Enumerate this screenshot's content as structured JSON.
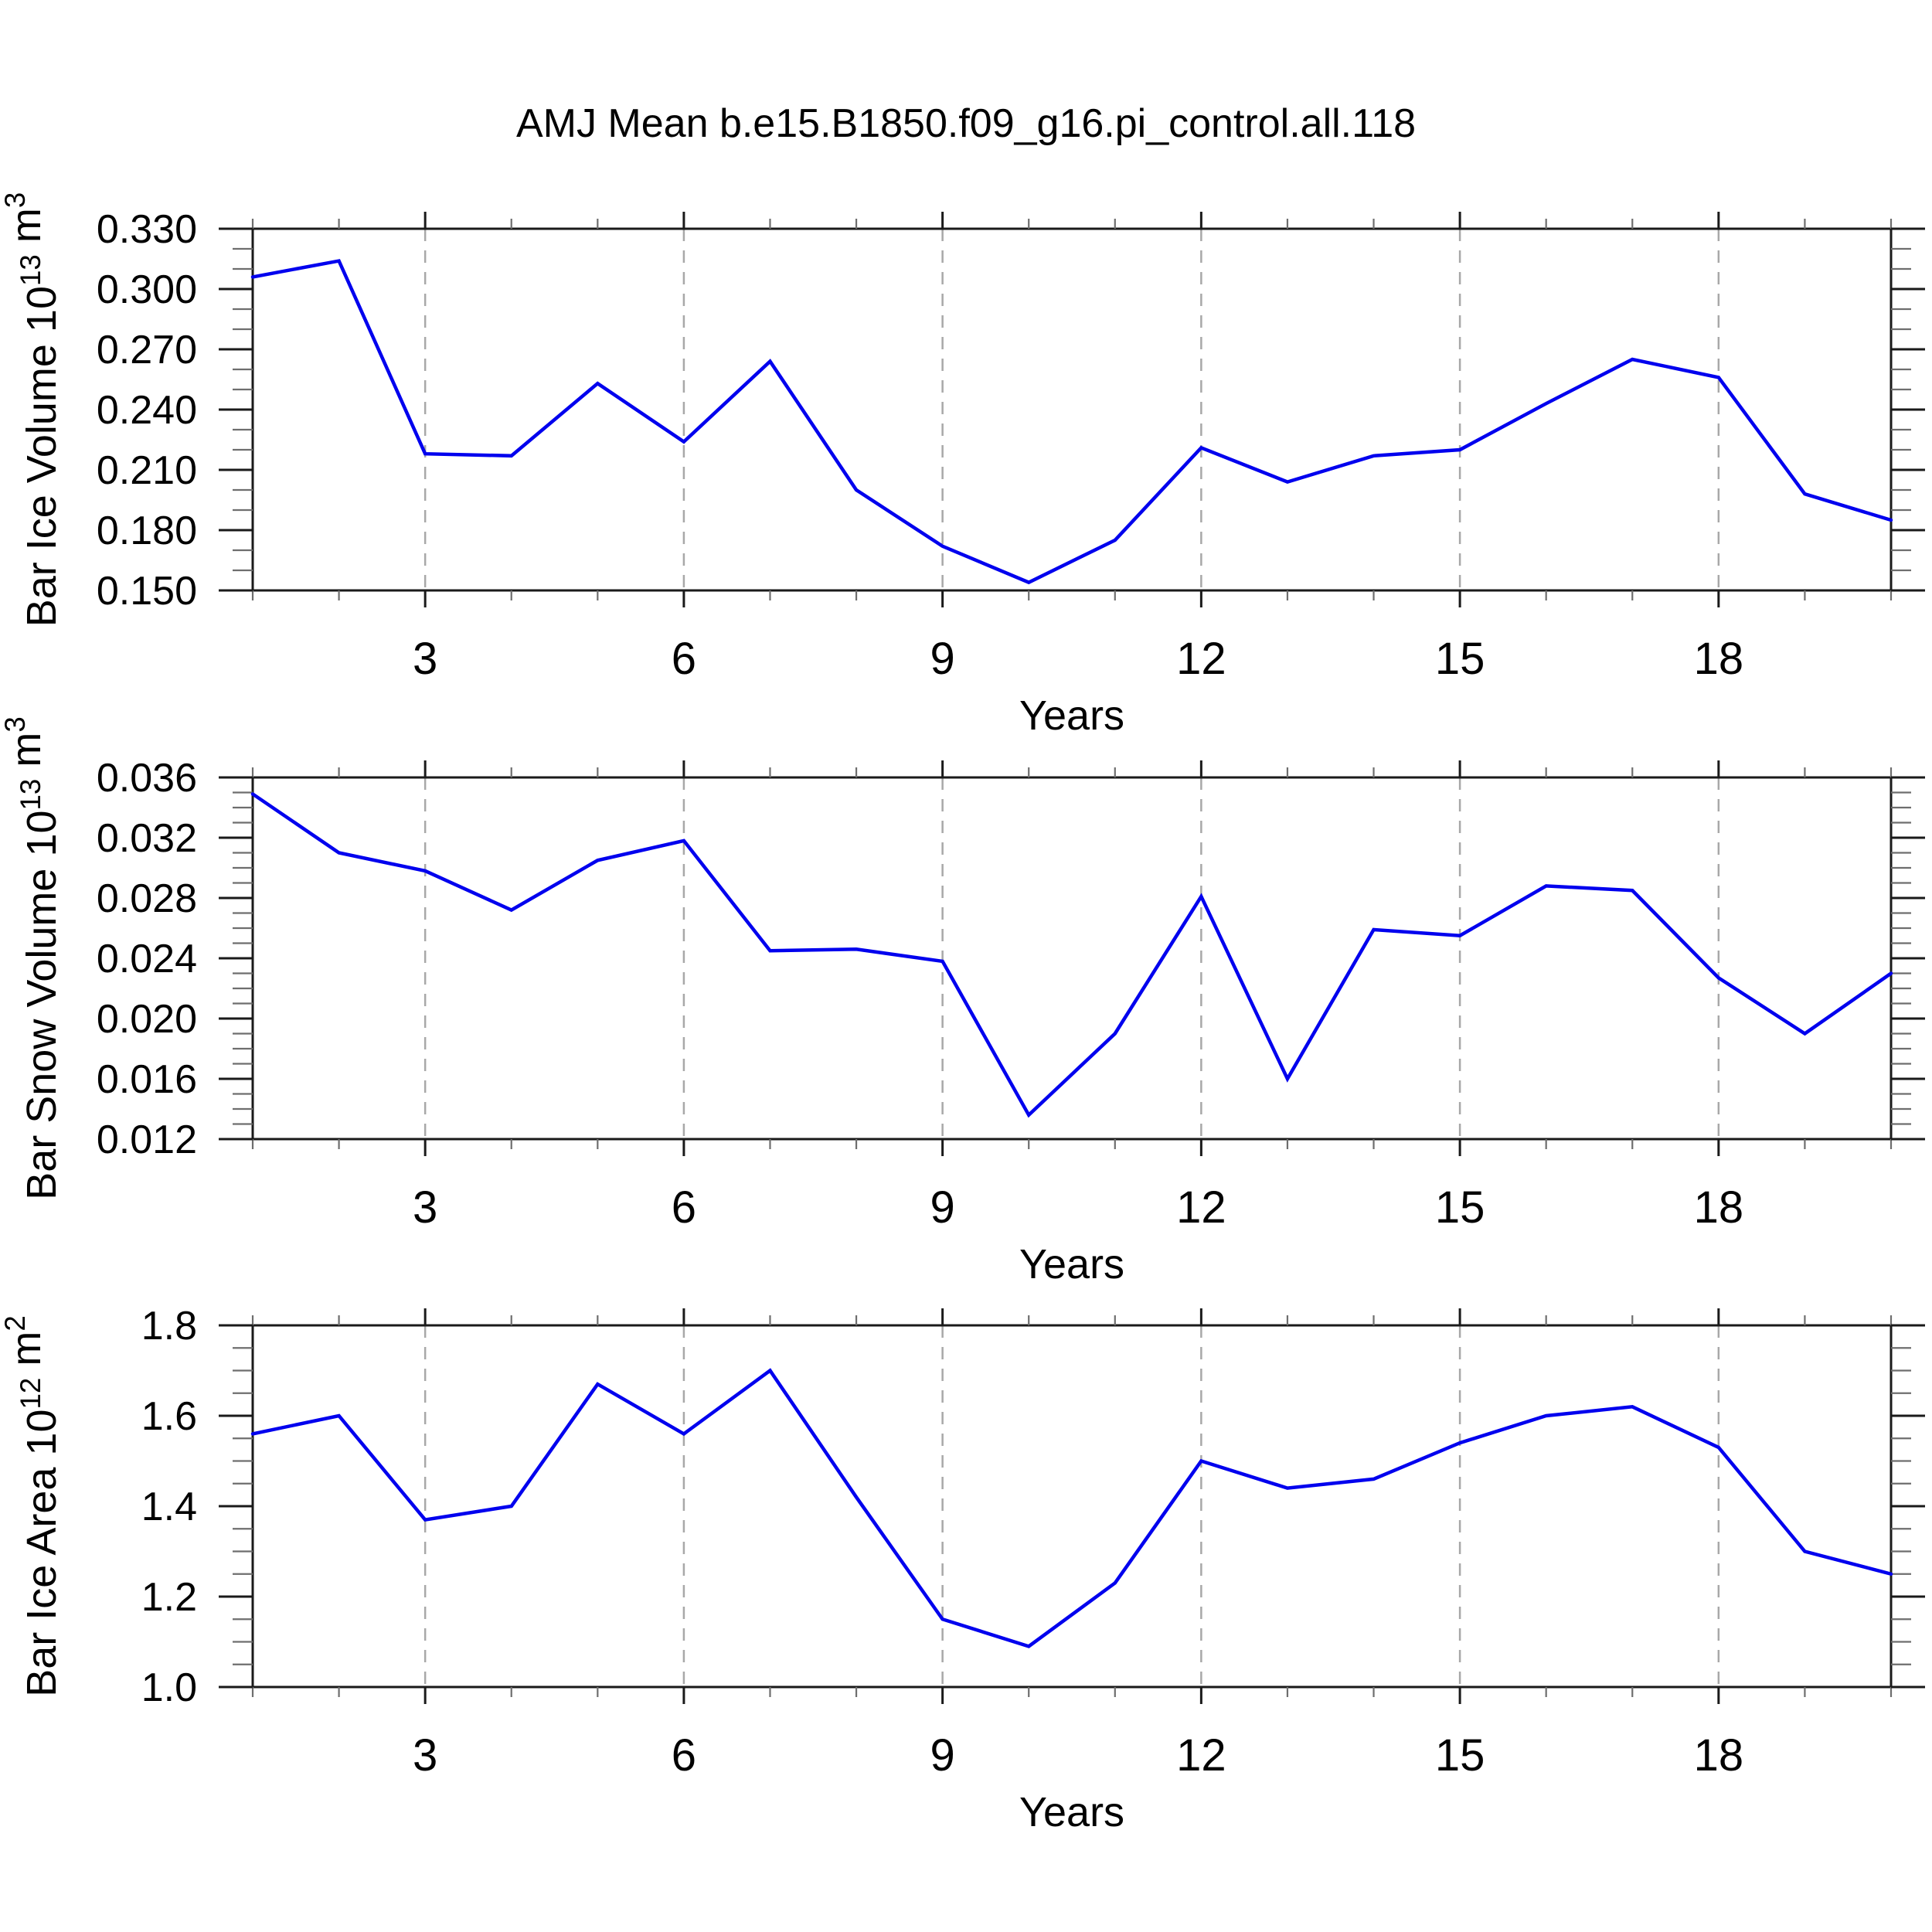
{
  "title": "AMJ Mean b.e15.B1850.f09_g16.pi_control.all.118",
  "xlabel": "Years",
  "colors": {
    "line": "#0000ee",
    "frame": "#1a1a1a",
    "grid": "#a8a8a8",
    "major_tick": "#1a1a1a",
    "minor_tick": "#6e6e6e",
    "text": "#000000"
  },
  "years": [
    1,
    2,
    3,
    4,
    5,
    6,
    7,
    8,
    9,
    10,
    11,
    12,
    13,
    14,
    15,
    16,
    17,
    18,
    19,
    20
  ],
  "xticks_major": [
    3,
    6,
    9,
    12,
    15,
    18
  ],
  "xtick_labels": [
    "3",
    "6",
    "9",
    "12",
    "15",
    "18"
  ],
  "chart_data": [
    {
      "type": "line",
      "ylabel": "Bar Ice Volume 10^{13} m^{3}",
      "xlabel": "Years",
      "ylim": [
        0.15,
        0.33
      ],
      "yticks_major": [
        0.33,
        0.3,
        0.27,
        0.24,
        0.21,
        0.18,
        0.15
      ],
      "ytick_labels": [
        "0.330",
        "0.300",
        "0.270",
        "0.240",
        "0.210",
        "0.180",
        "0.150"
      ],
      "ytick_minor_step": 0.01,
      "grid": "dashed-vertical-at-major-xticks",
      "legend": "none",
      "x": [
        1,
        2,
        3,
        4,
        5,
        6,
        7,
        8,
        9,
        10,
        11,
        12,
        13,
        14,
        15,
        16,
        17,
        18,
        19,
        20
      ],
      "values": [
        0.306,
        0.314,
        0.218,
        0.217,
        0.253,
        0.224,
        0.264,
        0.2,
        0.172,
        0.154,
        0.175,
        0.221,
        0.204,
        0.217,
        0.22,
        0.243,
        0.265,
        0.256,
        0.198,
        0.185
      ]
    },
    {
      "type": "line",
      "ylabel": "Bar Snow Volume 10^{13} m^{3}",
      "xlabel": "Years",
      "ylim": [
        0.012,
        0.036
      ],
      "yticks_major": [
        0.036,
        0.032,
        0.028,
        0.024,
        0.02,
        0.016,
        0.012
      ],
      "ytick_labels": [
        "0.036",
        "0.032",
        "0.028",
        "0.024",
        "0.020",
        "0.016",
        "0.012"
      ],
      "ytick_minor_step": 0.001,
      "grid": "dashed-vertical-at-major-xticks",
      "legend": "none",
      "x": [
        1,
        2,
        3,
        4,
        5,
        6,
        7,
        8,
        9,
        10,
        11,
        12,
        13,
        14,
        15,
        16,
        17,
        18,
        19,
        20
      ],
      "values": [
        0.0349,
        0.031,
        0.0298,
        0.0272,
        0.0305,
        0.0318,
        0.0245,
        0.0246,
        0.0238,
        0.0136,
        0.019,
        0.0281,
        0.016,
        0.0259,
        0.0255,
        0.0288,
        0.0285,
        0.0227,
        0.019,
        0.023
      ]
    },
    {
      "type": "line",
      "ylabel": "Bar Ice Area 10^{12} m^{2}",
      "xlabel": "Years",
      "ylim": [
        1.0,
        1.8
      ],
      "yticks_major": [
        1.8,
        1.6,
        1.4,
        1.2,
        1.0
      ],
      "ytick_labels": [
        "1.8",
        "1.6",
        "1.4",
        "1.2",
        "1.0"
      ],
      "ytick_minor_step": 0.05,
      "grid": "dashed-vertical-at-major-xticks",
      "legend": "none",
      "x": [
        1,
        2,
        3,
        4,
        5,
        6,
        7,
        8,
        9,
        10,
        11,
        12,
        13,
        14,
        15,
        16,
        17,
        18,
        19,
        20
      ],
      "values": [
        1.56,
        1.6,
        1.37,
        1.4,
        1.67,
        1.56,
        1.7,
        1.42,
        1.15,
        1.09,
        1.23,
        1.5,
        1.44,
        1.46,
        1.54,
        1.6,
        1.62,
        1.53,
        1.3,
        1.25
      ]
    }
  ]
}
